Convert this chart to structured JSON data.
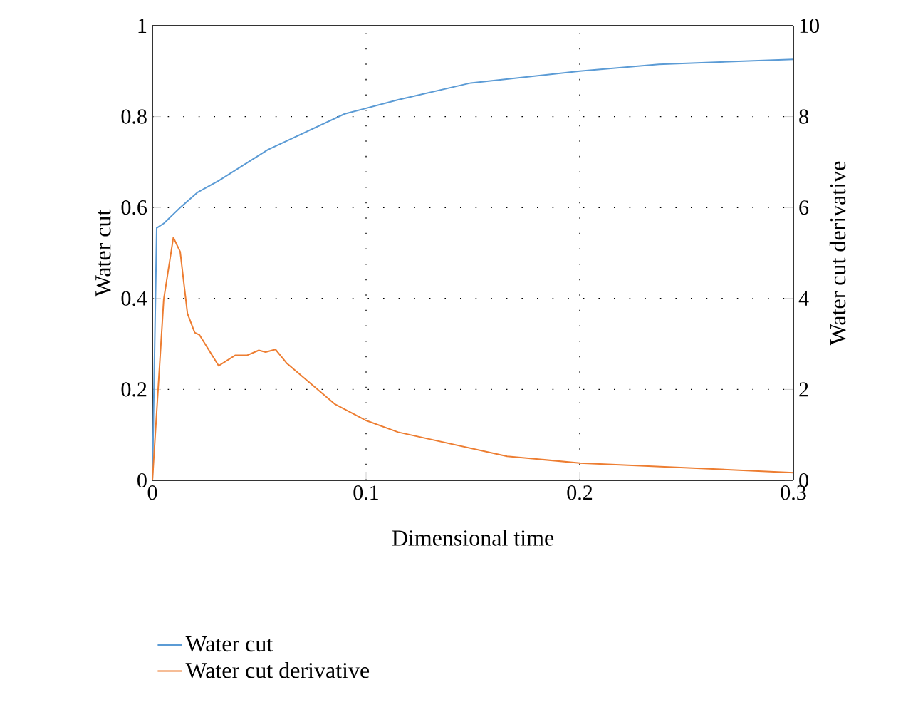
{
  "chart_data": {
    "type": "line",
    "xlabel": "Dimensional time",
    "ylabel": "Water cut",
    "y2label": "Water cut derivative",
    "xlim": [
      0,
      0.3
    ],
    "xticks": [
      0,
      0.1,
      0.2,
      0.3
    ],
    "ylim": [
      0,
      1
    ],
    "yticks": [
      0,
      0.2,
      0.4,
      0.6,
      0.8,
      1
    ],
    "y2lim": [
      0,
      10
    ],
    "y2ticks": [
      0,
      2,
      4,
      6,
      8,
      10
    ],
    "grid": true,
    "legend": "bottom",
    "marker": "none",
    "line_style": "solid",
    "series": [
      {
        "name": "Water cut",
        "color": "#5b9bd5",
        "x": [
          0,
          0.002,
          0.0053,
          0.013,
          0.021,
          0.031,
          0.054,
          0.09,
          0.115,
          0.149,
          0.2,
          0.237,
          0.3
        ],
        "values": [
          0,
          0.555,
          0.565,
          0.6,
          0.633,
          0.659,
          0.727,
          0.806,
          0.837,
          0.874,
          0.9,
          0.915,
          0.926
        ]
      },
      {
        "name": "Water cut derivative",
        "color": "#ed7d31",
        "axis": "y2",
        "x": [
          0,
          0.0053,
          0.0098,
          0.013,
          0.0164,
          0.0198,
          0.022,
          0.031,
          0.0387,
          0.0442,
          0.0498,
          0.053,
          0.0576,
          0.063,
          0.0853,
          0.0998,
          0.115,
          0.166,
          0.2,
          0.3
        ],
        "values": [
          0,
          3.98,
          5.34,
          5.03,
          3.67,
          3.25,
          3.2,
          2.52,
          2.75,
          2.75,
          2.86,
          2.82,
          2.88,
          2.57,
          1.68,
          1.32,
          1.06,
          0.53,
          0.38,
          0.17
        ]
      }
    ]
  }
}
